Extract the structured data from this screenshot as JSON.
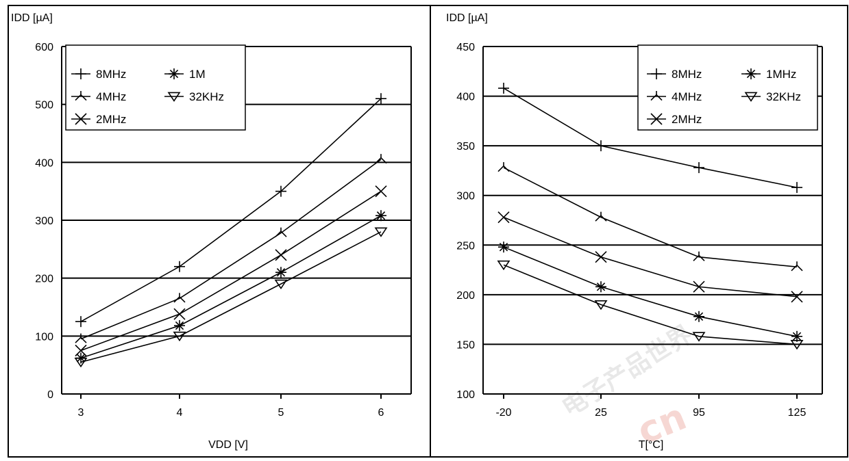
{
  "chart_data": [
    {
      "type": "line",
      "ylabel": "IDD [µA]",
      "xlabel": "VDD [V]",
      "categories": [
        "3",
        "4",
        "5",
        "6"
      ],
      "ylim": [
        0,
        600
      ],
      "yticks": [
        "0",
        "100",
        "200",
        "300",
        "400",
        "500",
        "600"
      ],
      "grid": true,
      "legend_position": "top-left",
      "legend_labels": [
        "8MHz",
        "4MHz",
        "2MHz",
        "1M",
        "32KHz"
      ],
      "series": [
        {
          "name": "8MHz",
          "marker": "plus",
          "values": [
            125,
            220,
            350,
            510
          ]
        },
        {
          "name": "4MHz",
          "marker": "tri-cross",
          "values": [
            95,
            165,
            278,
            405
          ]
        },
        {
          "name": "2MHz",
          "marker": "x",
          "values": [
            75,
            138,
            240,
            350
          ]
        },
        {
          "name": "1M",
          "marker": "asterisk",
          "values": [
            62,
            118,
            210,
            308
          ]
        },
        {
          "name": "32KHz",
          "marker": "triangle-down",
          "values": [
            55,
            100,
            190,
            280
          ]
        }
      ]
    },
    {
      "type": "line",
      "ylabel": "IDD [µA]",
      "xlabel": "T[°C]",
      "categories": [
        "-20",
        "25",
        "95",
        "125"
      ],
      "ylim": [
        100,
        450
      ],
      "yticks": [
        "100",
        "150",
        "200",
        "250",
        "300",
        "350",
        "400",
        "450"
      ],
      "grid": true,
      "legend_position": "top-right",
      "legend_labels": [
        "8MHz",
        "4MHz",
        "2MHz",
        "1MHz",
        "32KHz"
      ],
      "series": [
        {
          "name": "8MHz",
          "marker": "plus",
          "values": [
            408,
            350,
            328,
            308
          ]
        },
        {
          "name": "4MHz",
          "marker": "tri-cross",
          "values": [
            328,
            278,
            238,
            228
          ]
        },
        {
          "name": "2MHz",
          "marker": "x",
          "values": [
            278,
            238,
            208,
            198
          ]
        },
        {
          "name": "1MHz",
          "marker": "asterisk",
          "values": [
            248,
            208,
            178,
            158
          ]
        },
        {
          "name": "32KHz",
          "marker": "triangle-down",
          "values": [
            230,
            190,
            158,
            150
          ]
        }
      ]
    }
  ],
  "watermark": {
    "chinese": "电子产品世界",
    "latin": "cn"
  }
}
